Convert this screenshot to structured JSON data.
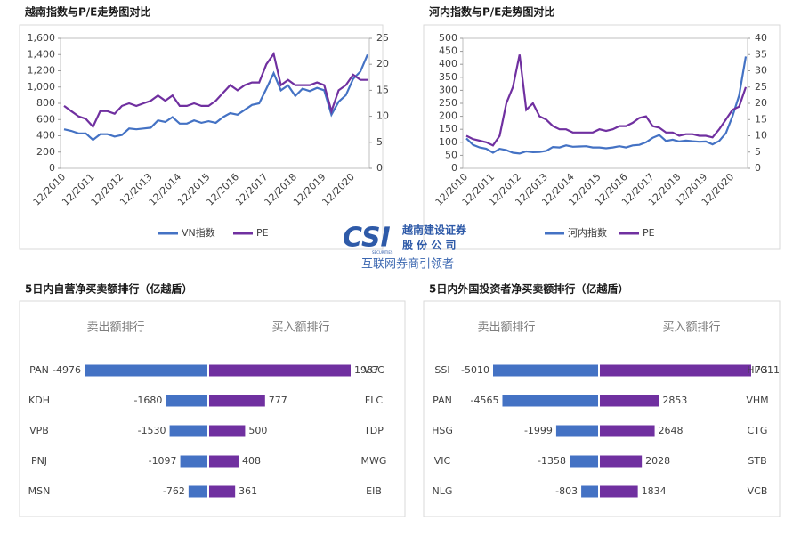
{
  "chart_data": [
    {
      "type": "line",
      "title": "越南指数与P/E走势图对比",
      "categories": [
        "12/2010",
        null,
        null,
        null,
        "12/2011",
        null,
        null,
        null,
        "12/2012",
        null,
        null,
        null,
        "12/2013",
        null,
        null,
        null,
        "12/2014",
        null,
        null,
        null,
        "12/2015",
        null,
        null,
        null,
        "12/2016",
        null,
        null,
        null,
        "12/2017",
        null,
        null,
        null,
        "12/2018",
        null,
        null,
        null,
        "12/2019",
        null,
        null,
        null,
        "12/2020",
        null,
        null
      ],
      "series": [
        {
          "name": "VN指数",
          "color": "#4472c4",
          "values": [
            480,
            460,
            430,
            430,
            350,
            420,
            420,
            390,
            410,
            490,
            480,
            490,
            500,
            590,
            570,
            630,
            550,
            550,
            590,
            560,
            580,
            560,
            630,
            680,
            660,
            720,
            780,
            800,
            980,
            1170,
            960,
            1020,
            890,
            980,
            950,
            990,
            960,
            660,
            820,
            900,
            1100,
            1190,
            1400
          ]
        },
        {
          "name": "PE",
          "color": "#7030a0",
          "axis": "y2",
          "values": [
            12,
            11,
            10,
            9.5,
            8,
            11,
            11,
            10.5,
            12,
            12.5,
            12,
            12.5,
            13,
            14,
            13,
            14,
            12,
            12,
            12.5,
            12,
            12,
            13,
            14.5,
            16,
            15,
            16,
            16.5,
            16.5,
            20,
            22,
            16,
            17,
            16,
            16,
            16,
            16.5,
            16,
            11,
            15,
            16,
            18,
            17,
            17
          ]
        }
      ],
      "ylim": [
        0,
        1600
      ],
      "yticks": [
        0,
        200,
        400,
        600,
        800,
        {
          "value": 1000,
          "label": "1,000"
        },
        {
          "value": 1200,
          "label": "1,200"
        },
        {
          "value": 1400,
          "label": "1,400"
        },
        {
          "value": 1600,
          "label": "1,600"
        }
      ],
      "y2lim": [
        0,
        25
      ],
      "y2ticks": [
        0,
        5,
        10,
        15,
        20,
        25
      ]
    },
    {
      "type": "line",
      "title": "河内指数与P/E走势图对比",
      "categories": [
        "12/2010",
        null,
        null,
        null,
        "12/2011",
        null,
        null,
        null,
        "12/2012",
        null,
        null,
        null,
        "12/2013",
        null,
        null,
        null,
        "12/2014",
        null,
        null,
        null,
        "12/2015",
        null,
        null,
        null,
        "12/2016",
        null,
        null,
        null,
        "12/2017",
        null,
        null,
        null,
        "12/2018",
        null,
        null,
        null,
        "12/2019",
        null,
        null,
        null,
        "12/2020",
        null,
        null
      ],
      "series": [
        {
          "name": "河内指数",
          "color": "#4472c4",
          "values": [
            115,
            90,
            80,
            75,
            60,
            75,
            70,
            60,
            57,
            65,
            62,
            63,
            67,
            82,
            80,
            88,
            83,
            84,
            85,
            80,
            80,
            77,
            80,
            85,
            80,
            88,
            90,
            100,
            117,
            128,
            105,
            110,
            103,
            107,
            104,
            102,
            103,
            92,
            105,
            135,
            200,
            280,
            430
          ]
        },
        {
          "name": "PE",
          "color": "#7030a0",
          "axis": "y2",
          "values": [
            10,
            9,
            8.5,
            8,
            7,
            10,
            20,
            25,
            35,
            18,
            20,
            16,
            15,
            13,
            12,
            12,
            11,
            11,
            11,
            11,
            12,
            11.5,
            12,
            13,
            13,
            14,
            15.5,
            16,
            13,
            12.5,
            11,
            11,
            10,
            10.5,
            10.5,
            10,
            10,
            9.5,
            12,
            15,
            18,
            19,
            25
          ]
        }
      ],
      "ylim": [
        0,
        500
      ],
      "yticks": [
        0,
        50,
        100,
        150,
        200,
        250,
        300,
        350,
        400,
        450,
        500
      ],
      "y2lim": [
        0,
        40
      ],
      "y2ticks": [
        0,
        5,
        10,
        15,
        20,
        25,
        30,
        35,
        40
      ]
    },
    {
      "type": "diverging-bar",
      "title": "5日内自营净买卖额排行（亿越盾）",
      "series": [
        {
          "name": "卖出额排行",
          "color": "#4472c4",
          "categories": [
            "PAN",
            "KDH",
            "VPB",
            "PNJ",
            "MSN"
          ],
          "values": [
            -4976,
            -1680,
            -1530,
            -1097,
            -762
          ]
        },
        {
          "name": "买入额排行",
          "color": "#7030a0",
          "categories": [
            "VGC",
            "FLC",
            "TDP",
            "MWG",
            "EIB"
          ],
          "values": [
            1967,
            777,
            500,
            408,
            361
          ]
        }
      ]
    },
    {
      "type": "diverging-bar",
      "title": "5日内外国投资者净买卖额排行（亿越盾）",
      "series": [
        {
          "name": "卖出额排行",
          "color": "#4472c4",
          "categories": [
            "SSI",
            "PAN",
            "HSG",
            "VIC",
            "NLG"
          ],
          "values": [
            -5010,
            -4565,
            -1999,
            -1358,
            -803
          ]
        },
        {
          "name": "买入额排行",
          "color": "#7030a0",
          "categories": [
            "HPG",
            "VHM",
            "CTG",
            "STB",
            "VCB"
          ],
          "values": [
            7311,
            2853,
            2648,
            2028,
            1834
          ]
        }
      ]
    }
  ],
  "logo": {
    "mark": "CSI",
    "name": "越南建设证券",
    "name2": "股 份 公 司",
    "sub": "SECURITIES",
    "slogan": "互联网券商引领者"
  }
}
